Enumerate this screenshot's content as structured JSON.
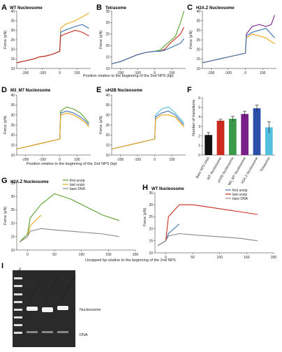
{
  "figure": {
    "panels": {
      "A": {
        "letter": "A",
        "title": "WT Nucleosome"
      },
      "B": {
        "letter": "B",
        "title": "Tetrasome"
      },
      "C": {
        "letter": "C",
        "title": "H2A.Z Nucleosome"
      },
      "D": {
        "letter": "D",
        "title": "M3_M7 Nucleosome"
      },
      "E": {
        "letter": "E",
        "title": "uH2B Nucleosome"
      },
      "F": {
        "letter": "F",
        "title": ""
      },
      "G": {
        "letter": "G",
        "title": "H2A.Z Nucleosome"
      },
      "H": {
        "letter": "H",
        "title": "WT Nucleosome"
      },
      "I": {
        "letter": "I",
        "title": ""
      }
    },
    "ylabel_force": "Force (pN)",
    "xlabel_top": "Position relative to the beginning of the 2nd NPS (bp)",
    "xlabel_mid": "Position relative to the beginning of the 2nd NPS (bp)",
    "xlabel_bottom": "Unzipped bp relative to the beginning of the 2nd NPS",
    "legend": [
      "first unzip",
      "last unzip",
      "bare DNA"
    ],
    "gel": {
      "lanes": [
        "ladder",
        "WT Nucleosome",
        "H2A.Z Nucleosome",
        "uH2B Nucleosome"
      ],
      "labels": {
        "nucleosome": "Nucleosome",
        "dna": "DNA"
      }
    },
    "colors": {
      "orange": "#f2a516",
      "blue": "#3a6fb0",
      "red": "#cc2a1f",
      "green": "#5aa02c",
      "purple": "#7a1f8a",
      "cyan": "#55bfe0",
      "grey": "#888888"
    }
  },
  "chart_data": [
    {
      "panel": "F",
      "type": "bar",
      "ylabel": "Number of transitions",
      "ylim": [
        0,
        6
      ],
      "yticks": [
        0,
        1,
        2,
        3,
        4,
        5,
        6
      ],
      "categories": [
        "Bare NPS DNA",
        "WT Nucleosome",
        "uH2B Nucleosome",
        "M3_M7 Nucleosome",
        "H2A.Z Nucleosome",
        "Tetrasome"
      ],
      "values": [
        2.1,
        3.6,
        3.8,
        4.3,
        4.9,
        2.9
      ],
      "errors": [
        0.25,
        0.15,
        0.25,
        0.3,
        0.35,
        0.6
      ],
      "colors": [
        "#111111",
        "#cc2a1f",
        "#3a9a4a",
        "#7a1f8a",
        "#2b4fa8",
        "#55bfe0"
      ]
    },
    {
      "panel": "A",
      "type": "line",
      "ylabel": "Force (pN)",
      "xlim": [
        -250,
        180
      ],
      "ylim": [
        10,
        40
      ],
      "xticks": [
        -200,
        -100,
        0,
        100
      ],
      "yticks": [
        10,
        15,
        20,
        25,
        30,
        35,
        40
      ],
      "x": [
        -250,
        -200,
        -150,
        -120,
        -80,
        -40,
        0,
        5,
        30,
        60,
        90,
        130,
        150,
        170
      ],
      "series": [
        {
          "color": "#f2a516",
          "values": [
            13,
            14,
            15,
            16,
            16.5,
            17.5,
            19,
            31,
            33,
            34,
            35,
            37,
            38,
            39
          ]
        },
        {
          "color": "#3a6fb0",
          "values": [
            13,
            14,
            15,
            16,
            16.5,
            17.5,
            19,
            29,
            30,
            31,
            32,
            33,
            32,
            31
          ]
        },
        {
          "color": "#cc2a1f",
          "values": [
            13,
            14,
            15,
            16,
            16.5,
            17.5,
            19,
            27,
            28,
            29,
            30,
            29,
            28,
            27
          ]
        }
      ]
    },
    {
      "panel": "B",
      "type": "line",
      "ylabel": "Force (pN)",
      "xlim": [
        -250,
        180
      ],
      "ylim": [
        10,
        35
      ],
      "xticks": [
        -200,
        -100,
        0,
        100
      ],
      "yticks": [
        10,
        15,
        20,
        25,
        30,
        35
      ],
      "x": [
        -250,
        -200,
        -150,
        -100,
        -50,
        0,
        30,
        60,
        90,
        120,
        150,
        170
      ],
      "series": [
        {
          "color": "#5aa02c",
          "values": [
            12,
            13,
            14.5,
            16,
            17,
            17.5,
            18,
            20,
            22,
            24,
            30,
            35
          ]
        },
        {
          "color": "#cc2a1f",
          "values": [
            12,
            13,
            14.5,
            16,
            17,
            17.5,
            17.5,
            18.5,
            21,
            23,
            25,
            28
          ]
        },
        {
          "color": "#3a6fb0",
          "values": [
            12,
            13,
            14.5,
            16,
            17,
            17.5,
            17.5,
            18,
            19,
            20,
            21,
            23
          ]
        }
      ]
    },
    {
      "panel": "C",
      "type": "line",
      "ylabel": "Force (pN)",
      "xlim": [
        -250,
        180
      ],
      "ylim": [
        10,
        40
      ],
      "xticks": [
        -200,
        -100,
        0,
        100
      ],
      "yticks": [
        10,
        15,
        20,
        25,
        30,
        35,
        40
      ],
      "x": [
        -250,
        -200,
        -150,
        -100,
        -50,
        0,
        5,
        40,
        80,
        120,
        150,
        170
      ],
      "series": [
        {
          "color": "#7a1f8a",
          "values": [
            13,
            14,
            15,
            16,
            17,
            18,
            28,
            32,
            33,
            32,
            33,
            38
          ]
        },
        {
          "color": "#f2a516",
          "values": [
            13,
            14,
            15,
            16,
            17,
            18,
            26,
            28,
            27,
            26,
            24,
            23
          ]
        },
        {
          "color": "#3a6fb0",
          "values": [
            13,
            14,
            15,
            16,
            17,
            18,
            27,
            29,
            30,
            31,
            28,
            26
          ]
        }
      ]
    },
    {
      "panel": "D",
      "type": "line",
      "ylabel": "Force (pN)",
      "xlim": [
        -250,
        180
      ],
      "ylim": [
        10,
        40
      ],
      "xticks": [
        -200,
        -100,
        0,
        100
      ],
      "yticks": [
        10,
        15,
        20,
        25,
        30,
        35,
        40
      ],
      "x": [
        -250,
        -200,
        -150,
        -100,
        -50,
        0,
        5,
        40,
        80,
        120,
        150,
        170
      ],
      "series": [
        {
          "color": "#5aa02c",
          "values": [
            13,
            14,
            15,
            16,
            17,
            18,
            32,
            34,
            33,
            31,
            28,
            26
          ]
        },
        {
          "color": "#3a6fb0",
          "values": [
            13,
            14,
            15,
            16,
            17,
            18,
            31,
            32,
            31,
            29,
            27,
            25
          ]
        },
        {
          "color": "#f2a516",
          "values": [
            13,
            14,
            15,
            16,
            17,
            18,
            30,
            31,
            30,
            28,
            26,
            24
          ]
        }
      ]
    },
    {
      "panel": "E",
      "type": "line",
      "ylabel": "Force (pN)",
      "xlim": [
        -250,
        180
      ],
      "ylim": [
        10,
        40
      ],
      "xticks": [
        -200,
        -100,
        0,
        100
      ],
      "yticks": [
        10,
        15,
        20,
        25,
        30,
        35,
        40
      ],
      "x": [
        -250,
        -200,
        -150,
        -100,
        -50,
        0,
        5,
        40,
        80,
        120,
        150,
        170
      ],
      "series": [
        {
          "color": "#55bfe0",
          "values": [
            13,
            14,
            15,
            16,
            17,
            18,
            30,
            33,
            34,
            31,
            28,
            26
          ]
        },
        {
          "color": "#3a6fb0",
          "values": [
            13,
            14,
            15,
            16,
            17,
            18,
            29,
            31,
            32,
            30,
            27,
            25
          ]
        },
        {
          "color": "#f2a516",
          "values": [
            13,
            14,
            15,
            16,
            17,
            18,
            28,
            30,
            30,
            29,
            26,
            24
          ]
        }
      ]
    },
    {
      "panel": "G",
      "type": "line",
      "ylabel": "Force (pN)",
      "xlim": [
        -20,
        200
      ],
      "ylim": [
        10,
        35
      ],
      "xticks": [
        0,
        50,
        100,
        150,
        200
      ],
      "yticks": [
        10,
        15,
        20,
        25,
        30,
        35
      ],
      "x": [
        -15,
        0,
        5,
        25,
        50,
        80,
        110,
        140,
        170
      ],
      "series": [
        {
          "name": "first unzip",
          "color": "#5aa02c",
          "values": [
            13,
            16,
            22,
            27,
            31,
            29,
            26,
            23,
            21
          ]
        },
        {
          "name": "last unzip",
          "color": "#f2a516",
          "values": [
            13,
            15,
            19,
            23,
            null,
            null,
            null,
            null,
            null
          ]
        },
        {
          "name": "bare DNA",
          "color": "#888888",
          "values": [
            13,
            15,
            17,
            18,
            17.5,
            17,
            16.5,
            16,
            15
          ]
        }
      ]
    },
    {
      "panel": "H",
      "type": "line",
      "ylabel": "Force (pN)",
      "xlim": [
        -20,
        200
      ],
      "ylim": [
        10,
        35
      ],
      "xticks": [
        0,
        50,
        100,
        150,
        200
      ],
      "yticks": [
        10,
        15,
        20,
        25,
        30,
        35
      ],
      "x": [
        -15,
        0,
        5,
        25,
        50,
        80,
        110,
        140,
        170
      ],
      "series": [
        {
          "name": "first unzip",
          "color": "#3a6fb0",
          "values": [
            13,
            15,
            18,
            22,
            null,
            null,
            null,
            null,
            null
          ]
        },
        {
          "name": "last unzip",
          "color": "#cc2a1f",
          "values": [
            13,
            15,
            25,
            30,
            30,
            29,
            28,
            27,
            26
          ]
        },
        {
          "name": "bare DNA",
          "color": "#888888",
          "values": [
            13,
            15,
            17,
            18,
            17.5,
            17,
            16.5,
            16,
            15
          ]
        }
      ]
    }
  ]
}
